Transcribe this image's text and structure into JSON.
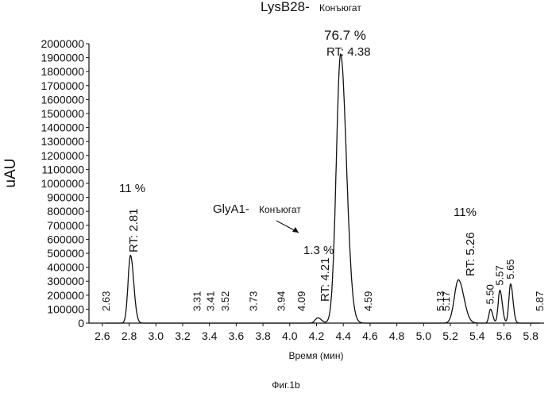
{
  "chart_data": {
    "type": "line",
    "ylabel": "uAU",
    "xlabel": "Время (мин)",
    "caption": "Фиг.1b",
    "xlim": [
      2.5,
      5.9
    ],
    "ylim": [
      0,
      2000000
    ],
    "x_ticks": [
      "2.6",
      "2.8",
      "3.0",
      "3.2",
      "3.4",
      "3.6",
      "3.8",
      "4.0",
      "4.2",
      "4.4",
      "4.6",
      "4.8",
      "5.0",
      "5.2",
      "5.4",
      "5.6",
      "5.8"
    ],
    "y_ticks": [
      "0",
      "100000",
      "200000",
      "300000",
      "400000",
      "500000",
      "600000",
      "700000",
      "800000",
      "900000",
      "1000000",
      "1100000",
      "1200000",
      "1300000",
      "1400000",
      "1500000",
      "1600000",
      "1700000",
      "1800000",
      "1900000",
      "2000000"
    ],
    "peaks": [
      {
        "rt": 2.63,
        "label": "2.63",
        "height": 0,
        "width": 0.02
      },
      {
        "rt": 2.81,
        "label": "2.81",
        "height": 485000,
        "width": 0.018
      },
      {
        "rt": 3.31,
        "label": "3.31",
        "height": 0,
        "width": 0.02
      },
      {
        "rt": 3.41,
        "label": "3.41",
        "height": 0,
        "width": 0.02
      },
      {
        "rt": 3.52,
        "label": "3.52",
        "height": 0,
        "width": 0.02
      },
      {
        "rt": 3.73,
        "label": "3.73",
        "height": 0,
        "width": 0.02
      },
      {
        "rt": 3.94,
        "label": "3.94",
        "height": 0,
        "width": 0.02
      },
      {
        "rt": 4.09,
        "label": "4.09",
        "height": 0,
        "width": 0.02
      },
      {
        "rt": 4.21,
        "label": "4.21",
        "height": 38000,
        "width": 0.02
      },
      {
        "rt": 4.38,
        "label": "4.38",
        "height": 1925000,
        "width": 0.032
      },
      {
        "rt": 4.59,
        "label": "4.59",
        "height": 0,
        "width": 0.02
      },
      {
        "rt": 5.13,
        "label": "5.13",
        "height": 0,
        "width": 0.02
      },
      {
        "rt": 5.17,
        "label": "5.17",
        "height": 0,
        "width": 0.02
      },
      {
        "rt": 5.26,
        "label": "5.26",
        "height": 310000,
        "width": 0.03
      },
      {
        "rt": 5.5,
        "label": "5.50",
        "height": 100000,
        "width": 0.012
      },
      {
        "rt": 5.57,
        "label": "5.57",
        "height": 235000,
        "width": 0.013
      },
      {
        "rt": 5.65,
        "label": "5.65",
        "height": 280000,
        "width": 0.013
      },
      {
        "rt": 5.87,
        "label": "5.87",
        "height": 0,
        "width": 0.02
      }
    ],
    "annotations": {
      "title": "LysB28-",
      "title_suffix": "Конъюгат",
      "main_pct": "76.7 %",
      "main_rt": "RT: 4.38",
      "p281_pct": "11 %",
      "p281_rt": "RT: 2.81",
      "glya1": "GlyA1-",
      "glya1_suffix": "Конъюгат",
      "p421_pct": "1.3 %",
      "p421_rt": "RT: 4.21",
      "p526_pct": "11%",
      "p526_rt": "RT: 5.26"
    }
  }
}
